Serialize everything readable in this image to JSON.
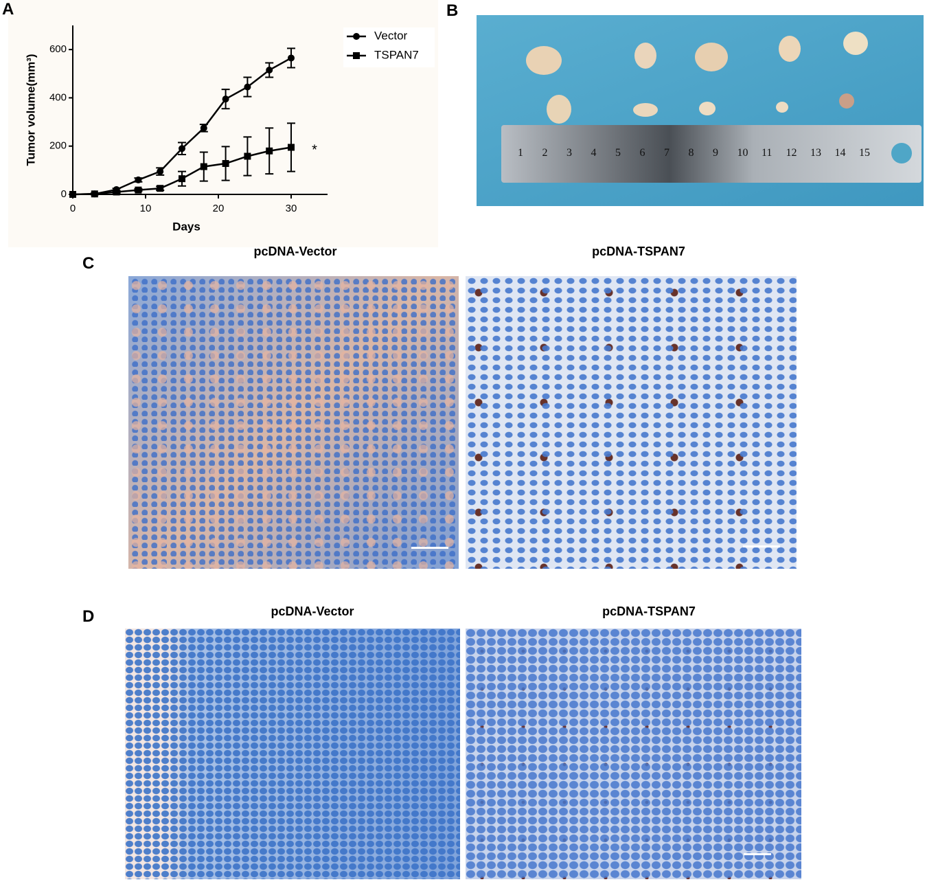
{
  "chart_data": {
    "type": "line",
    "xlabel": "Days",
    "ylabel": "Tumor volume(mm³)",
    "x": [
      0,
      3,
      6,
      9,
      12,
      15,
      18,
      21,
      24,
      27,
      30
    ],
    "series": [
      {
        "name": "Vector",
        "color": "#000000",
        "marker": "circle",
        "values": [
          0,
          2,
          20,
          60,
          95,
          190,
          275,
          395,
          445,
          515,
          565
        ],
        "errors": [
          0,
          3,
          5,
          8,
          15,
          25,
          15,
          40,
          40,
          30,
          40
        ]
      },
      {
        "name": "TSPAN7",
        "color": "#000000",
        "marker": "square",
        "values": [
          0,
          2,
          10,
          18,
          25,
          65,
          115,
          128,
          158,
          180,
          195
        ],
        "errors": [
          0,
          2,
          4,
          5,
          8,
          30,
          60,
          70,
          80,
          95,
          100
        ]
      }
    ],
    "annotation": "*",
    "xlim": [
      0,
      35
    ],
    "xticks": [
      0,
      10,
      20,
      30
    ],
    "ylim": [
      0,
      700
    ],
    "yticks": [
      0,
      200,
      400,
      600
    ],
    "grid": false,
    "legend": "upper right"
  },
  "panels": {
    "labels": [
      "A",
      "B",
      "C",
      "D"
    ],
    "C": {
      "titles": [
        "pcDNA-Vector",
        "pcDNA-TSPAN7"
      ]
    },
    "D": {
      "titles": [
        "pcDNA-Vector",
        "pcDNA-TSPAN7"
      ]
    }
  },
  "ruler": {
    "numbers": [
      1,
      2,
      3,
      4,
      5,
      6,
      7,
      8,
      9,
      10,
      11,
      12,
      13,
      14,
      15
    ]
  }
}
